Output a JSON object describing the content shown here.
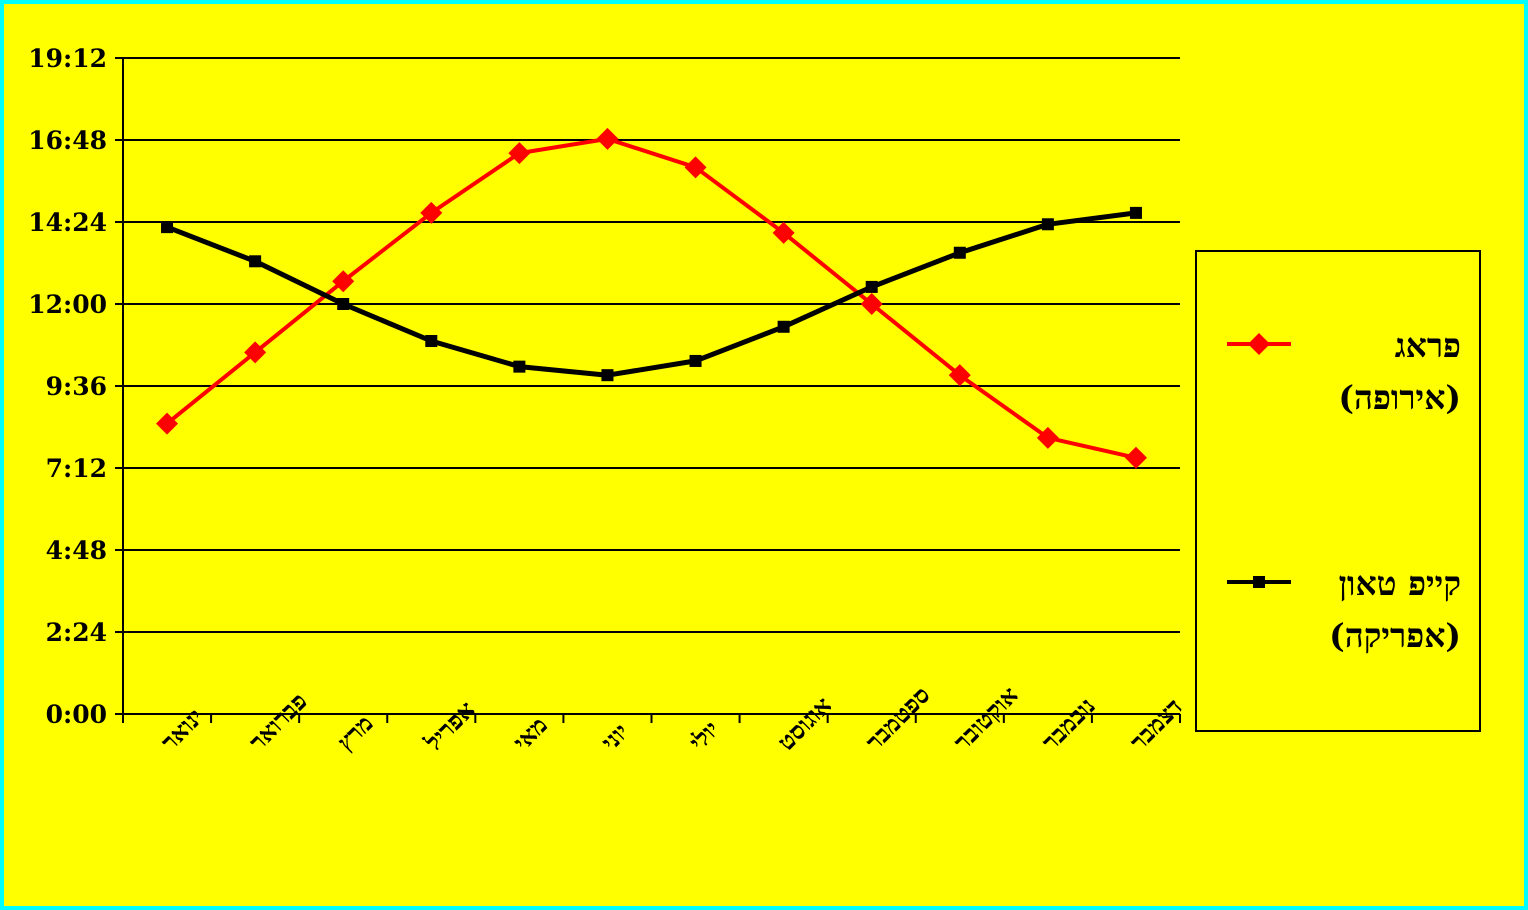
{
  "colors": {
    "background": "#ffff00",
    "border": "#00ffff",
    "series_prague": "#ff0000",
    "series_capetown": "#000000"
  },
  "chart_data": {
    "type": "line",
    "title": "",
    "xlabel": "",
    "ylabel": "",
    "y_unit": "hours:minutes",
    "ylim": [
      "0:00",
      "19:12"
    ],
    "y_ticks": [
      "0:00",
      "2:24",
      "4:48",
      "7:12",
      "9:36",
      "12:00",
      "14:24",
      "16:48",
      "19:12"
    ],
    "grid": "horizontal",
    "legend_position": "right",
    "categories": [
      "ינואר",
      "פברואר",
      "מרץ",
      "אפריל",
      "מאי",
      "יוני",
      "יולי",
      "אוגוסט",
      "ספטמבר",
      "אוקטובר",
      "נובמבר",
      "דצמבר"
    ],
    "series": [
      {
        "name": "פראג (אירופה)",
        "color": "#ff0000",
        "marker": "diamond",
        "values": [
          "8:30",
          "10:35",
          "12:40",
          "14:40",
          "16:25",
          "16:50",
          "16:00",
          "14:05",
          "12:00",
          "9:55",
          "8:05",
          "7:30"
        ]
      },
      {
        "name": "קייפ טאון (אפריקה)",
        "color": "#000000",
        "marker": "square",
        "values": [
          "14:15",
          "13:15",
          "12:00",
          "10:55",
          "10:10",
          "9:55",
          "10:20",
          "11:20",
          "12:30",
          "13:30",
          "14:20",
          "14:40"
        ]
      }
    ]
  },
  "legend": {
    "prague_line1": "פראג",
    "prague_line2": "(אירופה)",
    "capetown_line1": "קייפ טאון",
    "capetown_line2": "(אפריקה)"
  }
}
